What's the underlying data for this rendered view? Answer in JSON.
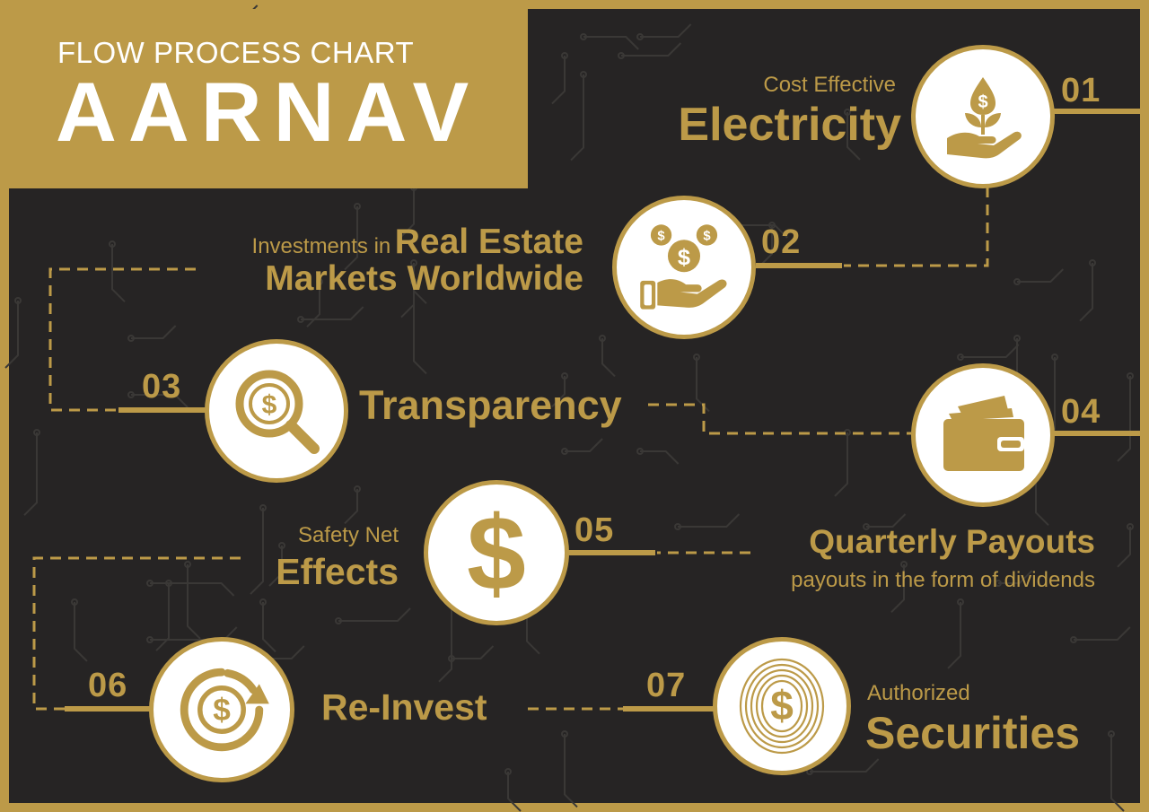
{
  "header": {
    "subtitle": "FLOW PROCESS CHART",
    "title": "AARNAV"
  },
  "colors": {
    "gold": "#bc9a48",
    "background": "#262424",
    "circle": "#ffffff"
  },
  "steps": [
    {
      "number": "01",
      "pre_label": "Cost Effective",
      "label": "Electricity",
      "icon": "plant-money-hand-icon"
    },
    {
      "number": "02",
      "pre_label": "Investments in",
      "label": "Real Estate",
      "label_line2": "Markets Worldwide",
      "icon": "coins-hand-icon"
    },
    {
      "number": "03",
      "label": "Transparency",
      "icon": "dollar-magnifier-icon"
    },
    {
      "number": "04",
      "label": "Quarterly Payouts",
      "post_label": "payouts in the form of dividends",
      "icon": "wallet-icon"
    },
    {
      "number": "05",
      "pre_label": "Safety Net",
      "label": "Effects",
      "icon": "dollar-sign-icon"
    },
    {
      "number": "06",
      "label": "Re-Invest",
      "icon": "dollar-refresh-icon"
    },
    {
      "number": "07",
      "pre_label": "Authorized",
      "label": "Securities",
      "icon": "fingerprint-dollar-icon"
    }
  ]
}
